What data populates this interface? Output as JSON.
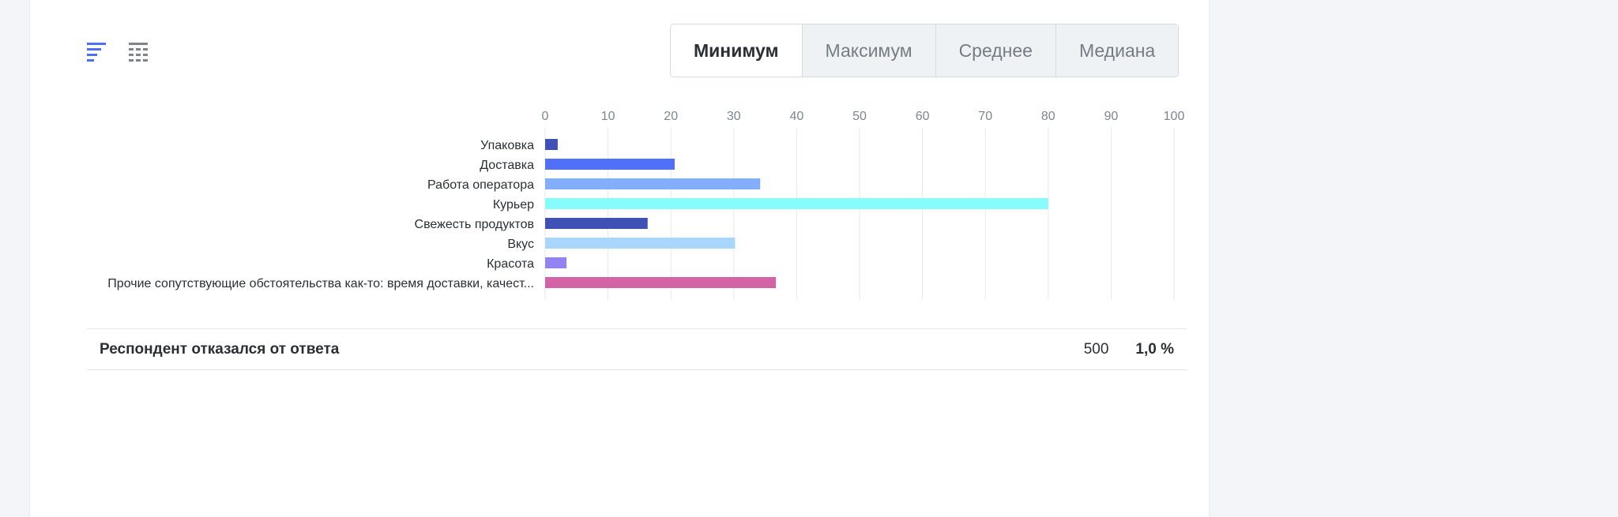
{
  "view_toggle": {
    "chart_icon": "bar-chart-icon",
    "table_icon": "table-icon",
    "accent": "#4f6ef7"
  },
  "stat_tabs": [
    {
      "label": "Минимум",
      "active": true
    },
    {
      "label": "Максимум",
      "active": false
    },
    {
      "label": "Среднее",
      "active": false
    },
    {
      "label": "Медиана",
      "active": false
    }
  ],
  "chart_data": {
    "type": "bar",
    "orientation": "horizontal",
    "categories": [
      "Упаковка",
      "Доставка",
      "Работа оператора",
      "Курьер",
      "Свежесть продуктов",
      "Вкус",
      "Красота",
      "Прочие сопутствующие обстоятельства как-то: время доставки, качест..."
    ],
    "values": [
      2,
      20.6,
      34.2,
      80,
      16.3,
      30.2,
      3.4,
      36.7
    ],
    "colors": [
      "#3f51b5",
      "#5170f8",
      "#82aefc",
      "#86fcfd",
      "#3f51b5",
      "#a9d6fc",
      "#9382f2",
      "#d263a6"
    ],
    "xlim": [
      0,
      100
    ],
    "xticks": [
      "0",
      "10",
      "20",
      "30",
      "40",
      "50",
      "60",
      "70",
      "80",
      "90",
      "100"
    ],
    "grid": true,
    "title": "",
    "xlabel": "",
    "ylabel": ""
  },
  "footer": {
    "label": "Респондент отказался от ответа",
    "count": "500",
    "percent": "1,0 %"
  }
}
